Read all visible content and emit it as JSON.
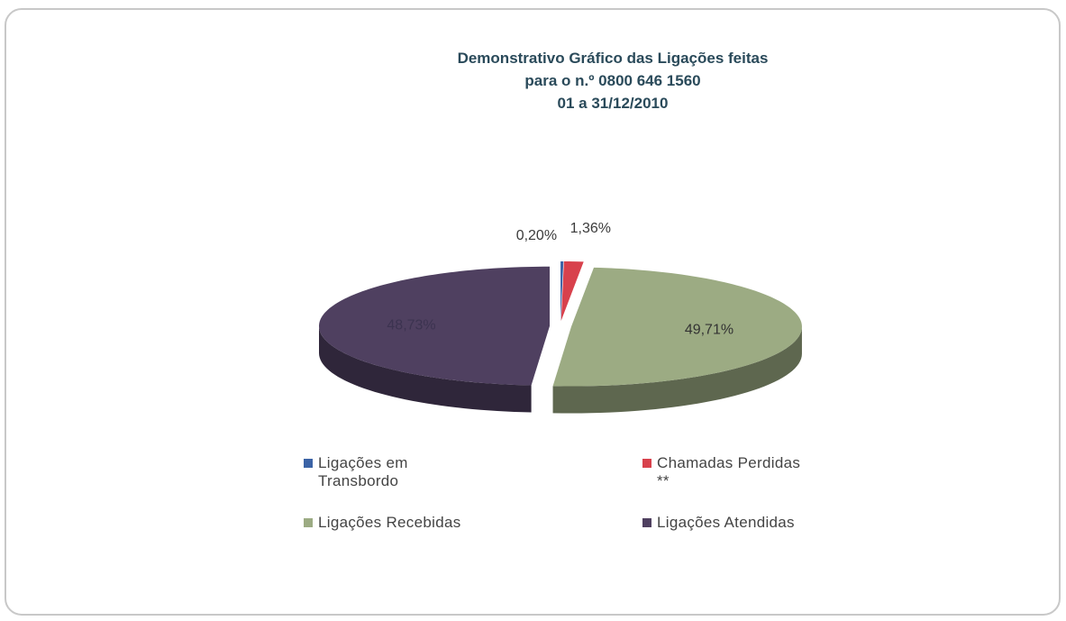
{
  "chart_data": {
    "type": "pie3d",
    "title": [
      "Demonstrativo Gráfico das Ligações feitas",
      "para o n.º 0800 646 1560",
      "01 a  31/12/2010"
    ],
    "categories": [
      "Ligações em Transbordo",
      "Chamadas Perdidas **",
      "Ligações Recebidas",
      "Ligações Atendidas"
    ],
    "values": [
      0.2,
      1.36,
      49.71,
      48.73
    ],
    "value_labels": [
      "0,20%",
      "1,36%",
      "49,71%",
      "48,73%"
    ],
    "colors": [
      "#3b63a6",
      "#d8414c",
      "#9cab83",
      "#4f4060"
    ],
    "legend": "bottom"
  }
}
